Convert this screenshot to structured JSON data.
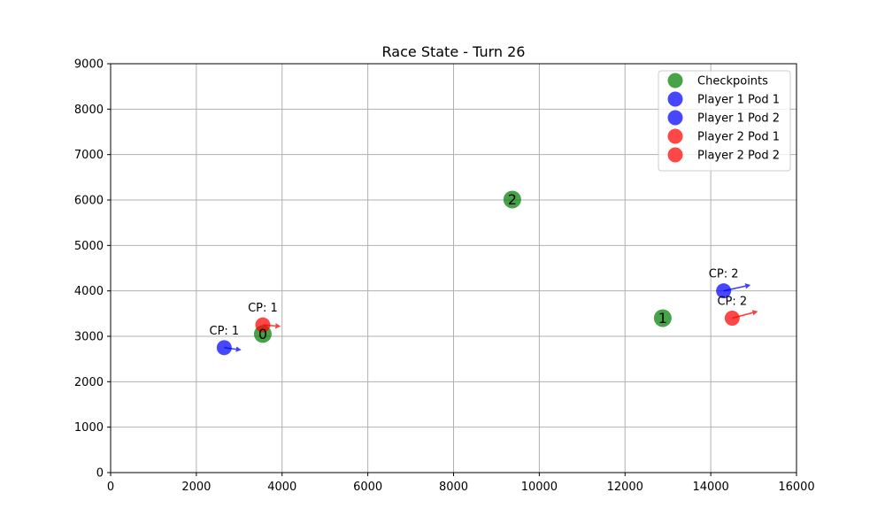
{
  "chart_data": {
    "type": "scatter",
    "title": "Race State - Turn 26",
    "xlabel": "",
    "ylabel": "",
    "xlim": [
      0,
      16000
    ],
    "ylim": [
      0,
      9000
    ],
    "x_ticks": [
      0,
      2000,
      4000,
      6000,
      8000,
      10000,
      12000,
      14000,
      16000
    ],
    "y_ticks": [
      0,
      1000,
      2000,
      3000,
      4000,
      5000,
      6000,
      7000,
      8000,
      9000
    ],
    "grid": true,
    "legend_position": "top-right",
    "series": [
      {
        "name": "Checkpoints",
        "color": "#008000",
        "points": [
          {
            "x": 3550,
            "y": 3050,
            "label": "0"
          },
          {
            "x": 12880,
            "y": 3400,
            "label": "1"
          },
          {
            "x": 9370,
            "y": 6010,
            "label": "2"
          }
        ]
      },
      {
        "name": "Player 1 Pod 1",
        "color": "#0000ff",
        "points": [
          {
            "x": 14300,
            "y": 4000,
            "annotation": "CP: 2",
            "arrow_to": {
              "x": 14930,
              "y": 4130
            }
          }
        ]
      },
      {
        "name": "Player 1 Pod 2",
        "color": "#0000ff",
        "points": [
          {
            "x": 2650,
            "y": 2750,
            "annotation": "CP: 1",
            "arrow_to": {
              "x": 3050,
              "y": 2700
            }
          }
        ]
      },
      {
        "name": "Player 2 Pod 1",
        "color": "#ff0000",
        "points": [
          {
            "x": 3550,
            "y": 3250,
            "annotation": "CP: 1",
            "arrow_to": {
              "x": 3970,
              "y": 3220
            }
          }
        ]
      },
      {
        "name": "Player 2 Pod 2",
        "color": "#ff0000",
        "points": [
          {
            "x": 14500,
            "y": 3400,
            "annotation": "CP: 2",
            "arrow_to": {
              "x": 15100,
              "y": 3550
            }
          }
        ]
      }
    ]
  }
}
